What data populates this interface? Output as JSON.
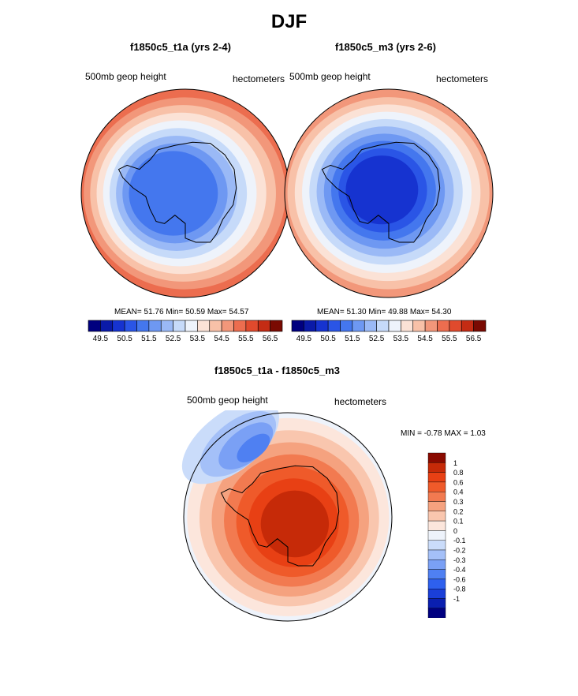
{
  "title": "DJF",
  "colors": {
    "abs_scale": [
      "#00007f",
      "#0a1aa8",
      "#1633d0",
      "#2a55e6",
      "#4477ee",
      "#6e98f2",
      "#9ab9f6",
      "#c6daf9",
      "#eef3fb",
      "#fbe2d6",
      "#f8c1a8",
      "#f2977a",
      "#ec6d4f",
      "#e04a2d",
      "#c42c14",
      "#9e1608",
      "#7a0a02"
    ],
    "diff_scale": [
      "#000080",
      "#0a1fb0",
      "#1a3fd8",
      "#2e60ee",
      "#4f80f2",
      "#7aa0f5",
      "#a4c0f8",
      "#cadcfa",
      "#eef3fb",
      "#fce6dc",
      "#f9c6ae",
      "#f5a27f",
      "#f27a50",
      "#ef5a2a",
      "#e84014",
      "#c62a08",
      "#8a0a00"
    ],
    "ocean_light": "#dbe8fb",
    "land_outline": "#000000"
  },
  "chart_data": [
    {
      "type": "contour_map",
      "title": "f1850c5_t1a (yrs 2-4)",
      "left_label": "500mb geop height",
      "right_label": "hectometers",
      "stats": {
        "mean": "51.76",
        "min": "50.59",
        "max": "54.57"
      },
      "stats_text": {
        "mean_label": "MEAN=",
        "min_label": "Min=",
        "max_label": "Max="
      },
      "levels": [
        "49.5",
        "50.5",
        "51.5",
        "52.5",
        "53.5",
        "54.5",
        "55.5",
        "56.5"
      ],
      "rings": [
        {
          "level": 54.6,
          "color_index": 11
        },
        {
          "level": 54.2,
          "color_index": 10
        },
        {
          "level": 53.8,
          "color_index": 9
        },
        {
          "level": 53.3,
          "color_index": 8
        },
        {
          "level": 52.9,
          "color_index": 7
        },
        {
          "level": 52.4,
          "color_index": 6
        },
        {
          "level": 51.9,
          "color_index": 5
        },
        {
          "level": 51.4,
          "color_index": 4
        }
      ]
    },
    {
      "type": "contour_map",
      "title": "f1850c5_m3 (yrs 2-6)",
      "left_label": "500mb geop height",
      "right_label": "hectometers",
      "stats": {
        "mean": "51.30",
        "min": "49.88",
        "max": "54.30"
      },
      "stats_text": {
        "mean_label": "MEAN=",
        "min_label": "Min=",
        "max_label": "Max="
      },
      "levels": [
        "49.5",
        "50.5",
        "51.5",
        "52.5",
        "53.5",
        "54.5",
        "55.5",
        "56.5"
      ],
      "rings": [
        {
          "level": 54.3,
          "color_index": 10
        },
        {
          "level": 53.8,
          "color_index": 9
        },
        {
          "level": 53.3,
          "color_index": 8
        },
        {
          "level": 52.9,
          "color_index": 7
        },
        {
          "level": 52.4,
          "color_index": 6
        },
        {
          "level": 51.9,
          "color_index": 5
        },
        {
          "level": 51.4,
          "color_index": 4
        },
        {
          "level": 50.9,
          "color_index": 3
        },
        {
          "level": 50.4,
          "color_index": 2
        }
      ]
    },
    {
      "type": "contour_map",
      "title": "f1850c5_t1a - f1850c5_m3",
      "left_label": "500mb geop height",
      "right_label": "hectometers",
      "stats": {
        "min": "-0.78",
        "max": "1.03"
      },
      "stats_text": {
        "min_label": "MIN =",
        "max_label": "MAX ="
      },
      "levels": [
        "1",
        "0.8",
        "0.6",
        "0.4",
        "0.3",
        "0.2",
        "0.1",
        "0",
        "-0.1",
        "-0.2",
        "-0.3",
        "-0.4",
        "-0.6",
        "-0.8",
        "-1"
      ],
      "rings": [
        {
          "level": 0.05,
          "color_index": 9
        },
        {
          "level": 0.15,
          "color_index": 10
        },
        {
          "level": 0.25,
          "color_index": 11
        },
        {
          "level": 0.35,
          "color_index": 12
        },
        {
          "level": 0.5,
          "color_index": 13
        },
        {
          "level": 0.7,
          "color_index": 14
        },
        {
          "level": 0.9,
          "color_index": 15
        }
      ],
      "negative_lobe": [
        {
          "level": -0.05,
          "color_index": 7
        },
        {
          "level": -0.2,
          "color_index": 6
        },
        {
          "level": -0.4,
          "color_index": 5
        },
        {
          "level": -0.6,
          "color_index": 4
        }
      ]
    }
  ]
}
